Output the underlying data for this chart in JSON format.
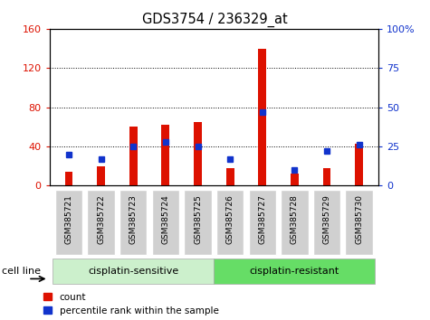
{
  "title": "GDS3754 / 236329_at",
  "categories": [
    "GSM385721",
    "GSM385722",
    "GSM385723",
    "GSM385724",
    "GSM385725",
    "GSM385726",
    "GSM385727",
    "GSM385728",
    "GSM385729",
    "GSM385730"
  ],
  "count_values": [
    14,
    20,
    60,
    62,
    65,
    18,
    140,
    12,
    18,
    43
  ],
  "percentile_values": [
    20,
    17,
    25,
    28,
    25,
    17,
    47,
    10,
    22,
    26
  ],
  "left_ylim": [
    0,
    160
  ],
  "right_ylim": [
    0,
    100
  ],
  "left_yticks": [
    0,
    40,
    80,
    120,
    160
  ],
  "right_yticks": [
    0,
    25,
    50,
    75,
    100
  ],
  "right_yticklabels": [
    "0",
    "25",
    "50",
    "75",
    "100%"
  ],
  "bar_color_red": "#dd1100",
  "bar_color_blue": "#1133cc",
  "group1_label": "cisplatin-sensitive",
  "group2_label": "cisplatin-resistant",
  "cell_line_label": "cell line",
  "legend_count": "count",
  "legend_percentile": "percentile rank within the sample",
  "col_bg_color": "#d0d0d0",
  "group1_color": "#ccf0cc",
  "group2_color": "#66dd66",
  "red_bar_width": 0.25,
  "blue_marker_size": 5
}
